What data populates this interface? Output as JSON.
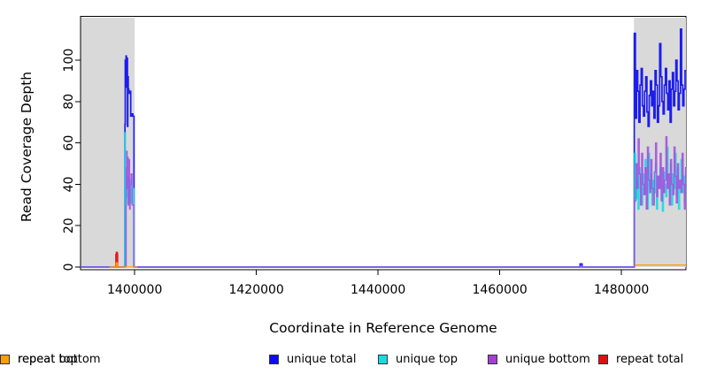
{
  "axes": {
    "x_label": "Coordinate in Reference Genome",
    "y_label": "Read Coverage Depth"
  },
  "legend": {
    "items": [
      {
        "label": "unique total",
        "color": "#0d0dee"
      },
      {
        "label": "unique top",
        "color": "#15dce4"
      },
      {
        "label": "unique bottom",
        "color": "#a23fd8"
      },
      {
        "label": "repeat total",
        "color": "#e01010"
      },
      {
        "label": "repeat top",
        "color": "#f2f20a"
      },
      {
        "label": "repeat bottom",
        "color": "#ff9d0a"
      }
    ]
  },
  "chart_data": {
    "type": "line",
    "title": "",
    "xlabel": "Coordinate in Reference Genome",
    "ylabel": "Read Coverage Depth",
    "xlim": [
      1391100,
      1490600
    ],
    "ylim": [
      0,
      120
    ],
    "grid": false,
    "legend_position": "bottom",
    "x_ticks": [
      {
        "value": 1400000,
        "label": "1400000"
      },
      {
        "value": 1420000,
        "label": "1420000"
      },
      {
        "value": 1440000,
        "label": "1440000"
      },
      {
        "value": 1460000,
        "label": "1460000"
      },
      {
        "value": 1480000,
        "label": "1480000"
      }
    ],
    "y_ticks": [
      {
        "value": 0,
        "label": "0"
      },
      {
        "value": 20,
        "label": "20"
      },
      {
        "value": 40,
        "label": "40"
      },
      {
        "value": 60,
        "label": "60"
      },
      {
        "value": 80,
        "label": "80"
      },
      {
        "value": 100,
        "label": "100"
      }
    ],
    "shaded_regions": [
      {
        "x1": 1391100,
        "x2": 1400000,
        "color": "#d9d9d9"
      },
      {
        "x1": 1482050,
        "x2": 1490600,
        "color": "#d9d9d9"
      }
    ],
    "series": [
      {
        "name": "unique total",
        "color": "#0d0dee",
        "segments": [
          {
            "points": [
              [
                1391100,
                0
              ],
              [
                1398380,
                0
              ]
            ]
          },
          {
            "points": [
              [
                1398400,
                69
              ],
              [
                1398450,
                100
              ],
              [
                1398510,
                87
              ],
              [
                1398570,
                102
              ],
              [
                1398630,
                94
              ],
              [
                1398690,
                88
              ],
              [
                1398750,
                101
              ],
              [
                1398810,
                68
              ],
              [
                1398870,
                92
              ],
              [
                1398940,
                86
              ],
              [
                1399030,
                85
              ],
              [
                1399130,
                84
              ],
              [
                1399240,
                85
              ],
              [
                1399350,
                73
              ],
              [
                1399500,
                74
              ],
              [
                1399700,
                73
              ],
              [
                1399870,
                73
              ]
            ]
          },
          {
            "points": [
              [
                1399890,
                0
              ],
              [
                1473150,
                0
              ]
            ]
          },
          {
            "points": [
              [
                1473200,
                1.5
              ],
              [
                1473480,
                1.5
              ]
            ]
          },
          {
            "points": [
              [
                1473520,
                0
              ],
              [
                1482080,
                0
              ]
            ]
          },
          {
            "x0": 1482100,
            "dx": 190,
            "values": [
              113,
              72,
              95,
              85,
              70,
              88,
              96,
              78,
              73,
              85,
              92,
              75,
              68,
              83,
              90,
              78,
              85,
              72,
              95,
              88,
              70,
              78,
              108,
              92,
              80,
              74,
              88,
              96,
              84,
              76,
              90,
              70,
              86,
              94,
              78,
              85,
              100,
              90,
              76,
              84,
              115,
              88,
              78,
              86,
              95
            ]
          },
          {
            "points": [
              [
                1490600,
                95
              ]
            ]
          }
        ]
      },
      {
        "name": "unique top",
        "color": "#15dce4",
        "segments": [
          {
            "points": [
              [
                1391100,
                0
              ],
              [
                1398380,
                0
              ]
            ]
          },
          {
            "points": [
              [
                1398400,
                65
              ],
              [
                1398480,
                43
              ],
              [
                1398560,
                30
              ],
              [
                1398640,
                43
              ],
              [
                1398720,
                34
              ],
              [
                1398800,
                44
              ],
              [
                1398880,
                31
              ],
              [
                1398960,
                43
              ],
              [
                1399060,
                30
              ],
              [
                1399200,
                42
              ],
              [
                1399400,
                31
              ],
              [
                1399600,
                38
              ],
              [
                1399870,
                32
              ]
            ]
          },
          {
            "points": [
              [
                1399890,
                0
              ],
              [
                1482130,
                0
              ]
            ]
          },
          {
            "x0": 1482150,
            "dx": 190,
            "values": [
              55,
              33,
              42,
              28,
              48,
              38,
              30,
              45,
              35,
              52,
              40,
              28,
              55,
              38,
              45,
              30,
              42,
              36,
              50,
              28,
              44,
              38,
              48,
              33,
              27,
              46,
              40,
              34,
              58,
              42,
              36,
              50,
              30,
              45,
              38,
              55,
              35,
              48,
              28,
              40,
              52,
              36,
              44,
              31,
              46
            ]
          },
          {
            "points": [
              [
                1490600,
                46
              ]
            ]
          }
        ]
      },
      {
        "name": "unique bottom",
        "color": "#a455dd",
        "segments": [
          {
            "points": [
              [
                1391100,
                0
              ],
              [
                1398580,
                0
              ]
            ]
          },
          {
            "points": [
              [
                1398600,
                48
              ],
              [
                1398680,
                56
              ],
              [
                1398760,
                38
              ],
              [
                1398840,
                53
              ],
              [
                1398920,
                30
              ],
              [
                1399000,
                44
              ],
              [
                1399080,
                52
              ],
              [
                1399160,
                28
              ],
              [
                1399260,
                40
              ],
              [
                1399400,
                45
              ],
              [
                1399560,
                30
              ],
              [
                1399800,
                30
              ]
            ]
          },
          {
            "points": [
              [
                1399820,
                0
              ],
              [
                1482150,
                0
              ]
            ]
          },
          {
            "x0": 1482170,
            "dx": 190,
            "values": [
              32,
              50,
              38,
              62,
              45,
              30,
              55,
              40,
              35,
              48,
              28,
              58,
              42,
              36,
              52,
              38,
              30,
              46,
              60,
              34,
              44,
              38,
              55,
              32,
              48,
              36,
              42,
              63,
              38,
              45,
              30,
              52,
              40,
              35,
              58,
              44,
              31,
              50,
              38,
              42,
              36,
              55,
              40,
              28,
              48
            ]
          },
          {
            "points": [
              [
                1490600,
                48
              ]
            ]
          }
        ]
      },
      {
        "name": "repeat total",
        "color": "#e01010",
        "segments": [
          {
            "points": [
              [
                1396900,
                0
              ],
              [
                1396940,
                6
              ],
              [
                1397020,
                7
              ],
              [
                1397100,
                6.5
              ],
              [
                1397150,
                6
              ],
              [
                1397170,
                0
              ],
              [
                1397350,
                0
              ]
            ]
          }
        ]
      },
      {
        "name": "repeat top",
        "color": "#f2f20a",
        "segments": []
      },
      {
        "name": "repeat bottom",
        "color": "#ff9d0a",
        "segments": [
          {
            "points": [
              [
                1395850,
                0
              ],
              [
                1396940,
                0
              ],
              [
                1396960,
                2
              ],
              [
                1397140,
                2
              ],
              [
                1397160,
                0
              ],
              [
                1400450,
                0
              ]
            ]
          },
          {
            "gap": true,
            "points": [
              [
                1482250,
                1
              ],
              [
                1490600,
                1
              ]
            ]
          }
        ]
      }
    ]
  }
}
